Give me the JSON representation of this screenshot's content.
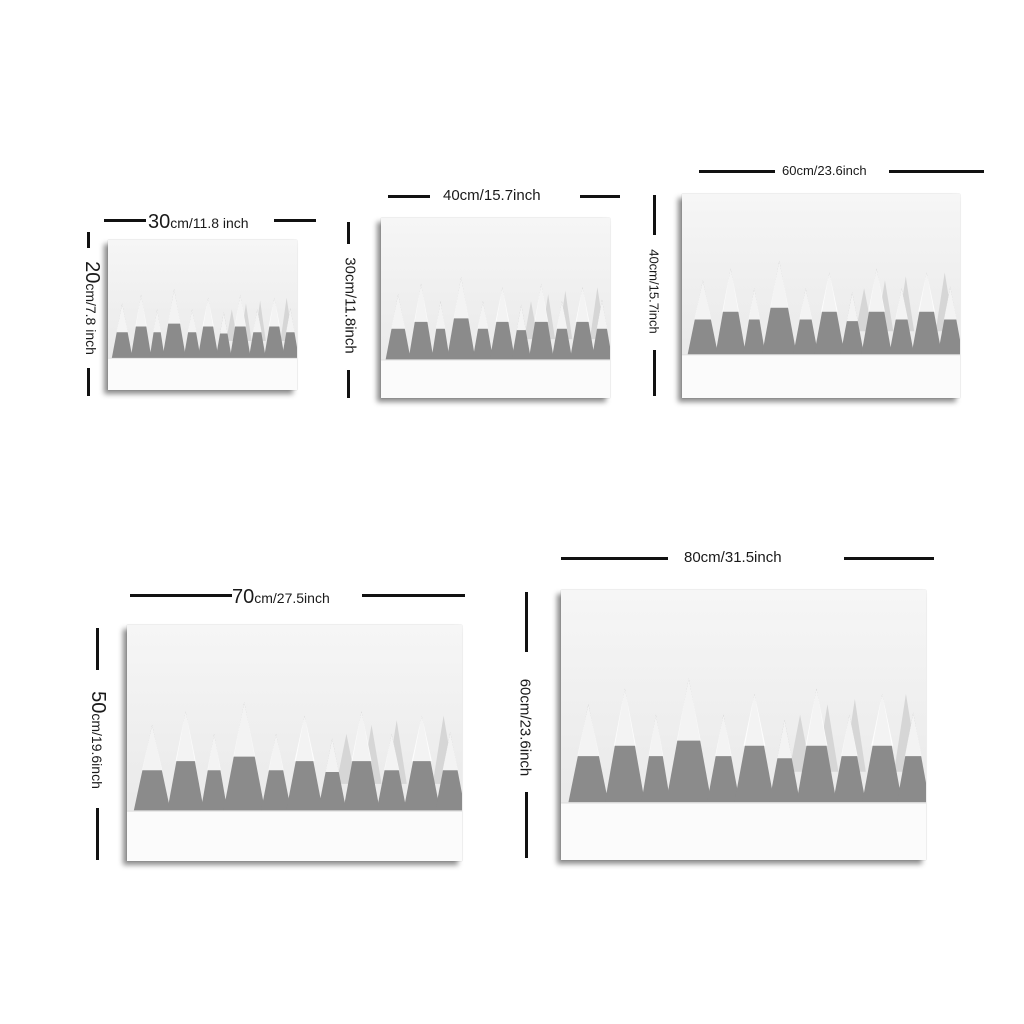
{
  "sizes": [
    {
      "width_cm_text": "30",
      "width_unit_text": "cm/11.8 inch",
      "height_cm_text": "20",
      "height_unit_text": "cm/7.8 inch"
    },
    {
      "width_label": "40cm/15.7inch",
      "height_label": "30cm/11.8inch"
    },
    {
      "width_label": "60cm/23.6inch",
      "height_label": "40cm/15.7inch"
    },
    {
      "width_cm_text": "70",
      "width_unit_text": "cm/27.5inch",
      "height_cm_text": "50",
      "height_unit_text": "cm/19.6inch"
    },
    {
      "width_label": "80cm/31.5inch",
      "height_label": "60cm/23.6inch"
    }
  ]
}
